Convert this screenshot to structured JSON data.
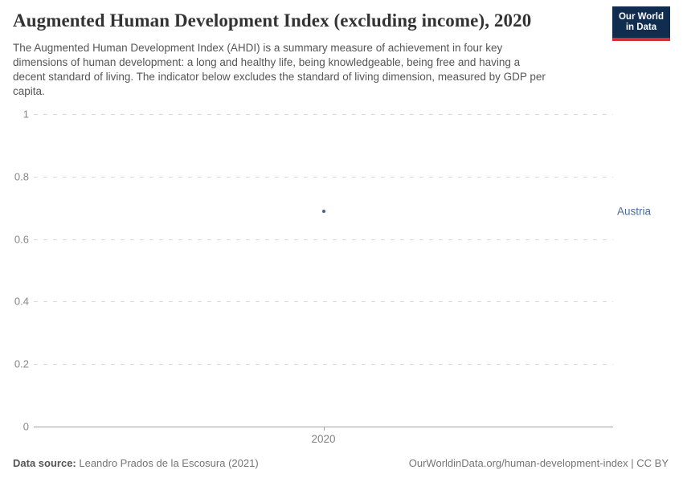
{
  "header": {
    "title": "Augmented Human Development Index (excluding income), 2020",
    "subtitle": "The Augmented Human Development Index (AHDI) is a summary measure of achievement in four key\ndimensions of human development: a long and healthy life, being knowledgeable, being free and having a\ndecent standard of living. The indicator below excludes the standard of living dimension, measured by GDP per\ncapita.",
    "logo": {
      "line1": "Our World",
      "line2": "in Data",
      "bg_color": "#102d50",
      "stripe_color": "#cf3036"
    }
  },
  "chart_data": {
    "type": "scatter",
    "title": "Augmented Human Development Index (excluding income), 2020",
    "x": [
      "2020"
    ],
    "series": [
      {
        "name": "Austria",
        "values": [
          0.69
        ],
        "color": "#3d649d",
        "label_color": "#4c6a9c"
      }
    ],
    "xlabel": "",
    "ylabel": "",
    "ylim": [
      0,
      1
    ],
    "yticks": [
      0,
      0.2,
      0.4,
      0.6,
      0.8,
      1
    ],
    "grid": true,
    "gridline_style": "dashed",
    "legend_position": "entity label right of point"
  },
  "footer": {
    "datasource_label": "Data source:",
    "datasource_value": " Leandro Prados de la Escosura (2021)",
    "right_text": "OurWorldinData.org/human-development-index | CC BY"
  }
}
